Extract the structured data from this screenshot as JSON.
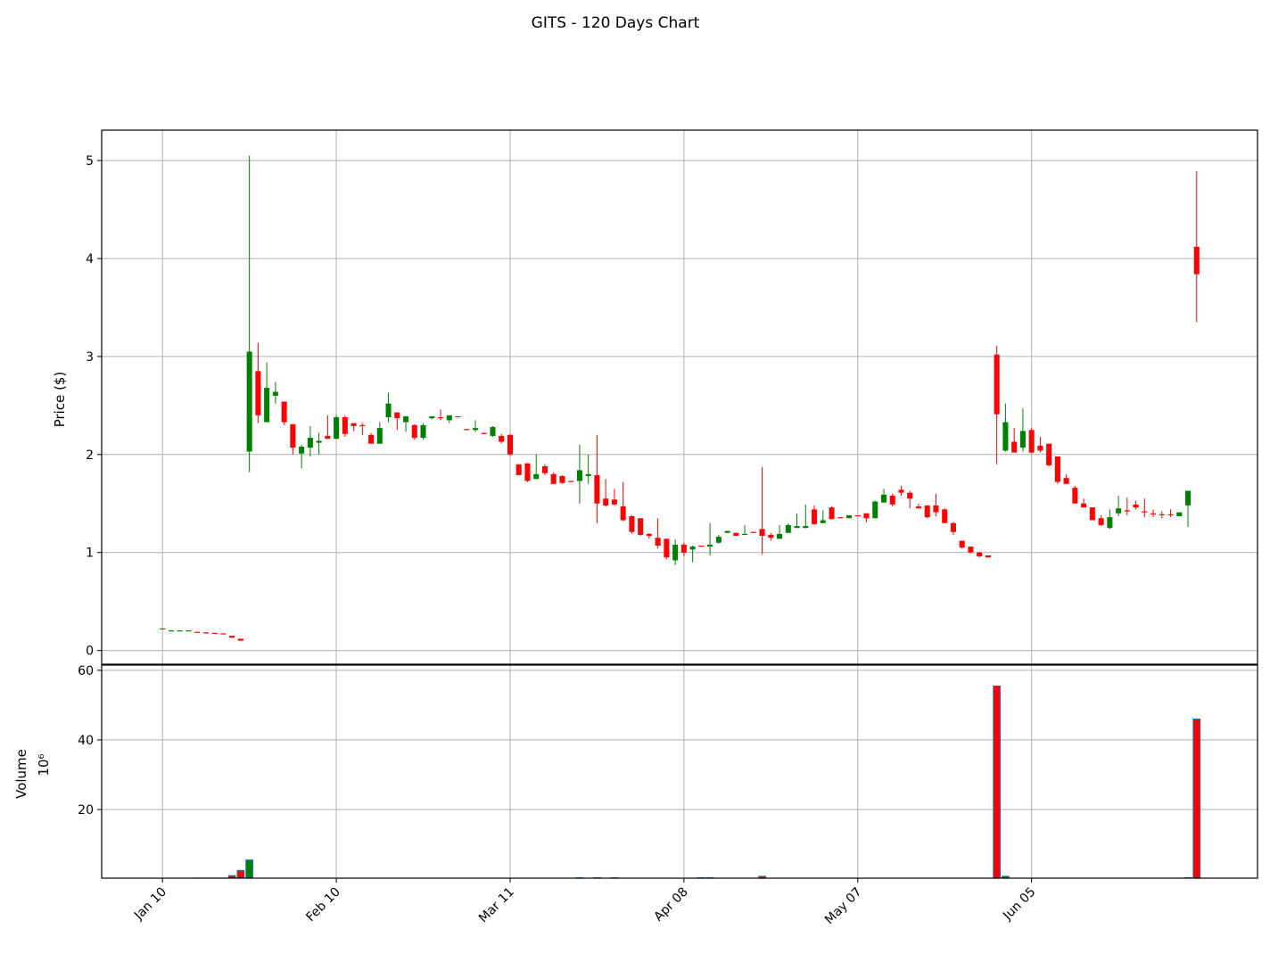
{
  "chart_data": {
    "type": "candlestick",
    "title": "GITS - 120 Days Chart",
    "ylabel": "Price ($)",
    "volume_ylabel": "Volume",
    "volume_unit": "10⁶",
    "up_color": "#008000",
    "down_color": "#ff0000",
    "volume_edge_color": "#1f77b4",
    "grid": true,
    "xlim": [
      -7,
      126
    ],
    "ylim": [
      -0.14,
      5.31
    ],
    "yticks": [
      0,
      1,
      2,
      3,
      4,
      5
    ],
    "volume_ylim": [
      0.26,
      61.5
    ],
    "volume_yticks": [
      20,
      40,
      60
    ],
    "categories": [
      "Jan 10",
      null,
      null,
      null,
      null,
      null,
      null,
      null,
      null,
      null,
      null,
      null,
      null,
      null,
      null,
      null,
      null,
      null,
      null,
      null,
      "Feb 10",
      null,
      null,
      null,
      null,
      null,
      null,
      null,
      null,
      null,
      null,
      null,
      null,
      null,
      null,
      null,
      null,
      null,
      null,
      null,
      "Mar 11",
      null,
      null,
      null,
      null,
      null,
      null,
      null,
      null,
      null,
      null,
      null,
      null,
      null,
      null,
      null,
      null,
      null,
      null,
      null,
      "Apr 08",
      null,
      null,
      null,
      null,
      null,
      null,
      null,
      null,
      null,
      null,
      null,
      null,
      null,
      null,
      null,
      null,
      null,
      null,
      null,
      "May 07",
      null,
      null,
      null,
      null,
      null,
      null,
      null,
      null,
      null,
      null,
      null,
      null,
      null,
      null,
      null,
      null,
      null,
      null,
      null,
      "Jun 05",
      null,
      null,
      null,
      null,
      null,
      null,
      null,
      null,
      null,
      null,
      null,
      null,
      null,
      null,
      null,
      null,
      null,
      null,
      null
    ],
    "open": [
      0.225,
      0.2,
      0.2,
      0.2,
      0.19,
      0.185,
      0.18,
      0.175,
      0.15,
      0.12,
      2.03,
      2.85,
      2.33,
      2.6,
      2.54,
      2.31,
      2.01,
      2.07,
      2.12,
      2.19,
      2.16,
      2.38,
      2.32,
      2.3,
      2.2,
      2.11,
      2.38,
      2.43,
      2.33,
      2.3,
      2.17,
      2.37,
      2.38,
      2.35,
      2.39,
      2.26,
      2.25,
      2.22,
      2.19,
      2.19,
      2.2,
      1.9,
      1.91,
      1.75,
      1.88,
      1.8,
      1.78,
      1.73,
      1.73,
      1.78,
      1.79,
      1.55,
      1.54,
      1.47,
      1.37,
      1.35,
      1.19,
      1.15,
      1.14,
      0.92,
      1.08,
      1.03,
      1.07,
      1.06,
      1.1,
      1.2,
      1.2,
      1.18,
      1.21,
      1.24,
      1.18,
      1.14,
      1.2,
      1.25,
      1.25,
      1.44,
      1.3,
      1.46,
      1.36,
      1.35,
      1.38,
      1.4,
      1.35,
      1.51,
      1.58,
      1.64,
      1.61,
      1.47,
      1.48,
      1.48,
      1.44,
      1.3,
      1.12,
      1.06,
      1.0,
      0.97,
      3.02,
      2.04,
      2.13,
      2.07,
      2.25,
      2.09,
      2.11,
      1.98,
      1.76,
      1.66,
      1.5,
      1.46,
      1.35,
      1.25,
      1.4,
      1.43,
      1.49,
      1.42,
      1.4,
      1.39,
      1.39,
      1.37,
      1.48,
      4.12
    ],
    "high": [
      0.225,
      0.205,
      0.205,
      0.205,
      0.19,
      0.185,
      0.18,
      0.175,
      0.15,
      0.12,
      5.05,
      3.14,
      2.94,
      2.74,
      2.54,
      2.31,
      2.1,
      2.29,
      2.22,
      2.4,
      2.4,
      2.4,
      2.32,
      2.32,
      2.22,
      2.33,
      2.63,
      2.43,
      2.39,
      2.31,
      2.32,
      2.39,
      2.46,
      2.4,
      2.39,
      2.26,
      2.35,
      2.22,
      2.29,
      2.21,
      2.21,
      1.9,
      1.91,
      2.0,
      1.9,
      1.82,
      1.79,
      1.73,
      2.1,
      2.0,
      2.2,
      1.75,
      1.65,
      1.72,
      1.38,
      1.35,
      1.2,
      1.35,
      1.14,
      1.13,
      1.1,
      1.07,
      1.07,
      1.3,
      1.18,
      1.22,
      1.2,
      1.28,
      1.21,
      1.87,
      1.2,
      1.28,
      1.3,
      1.4,
      1.49,
      1.48,
      1.43,
      1.47,
      1.36,
      1.38,
      1.38,
      1.4,
      1.53,
      1.65,
      1.6,
      1.68,
      1.63,
      1.5,
      1.48,
      1.6,
      1.45,
      1.31,
      1.12,
      1.06,
      1.01,
      0.97,
      3.11,
      2.52,
      2.27,
      2.47,
      2.27,
      2.18,
      2.11,
      1.98,
      1.8,
      1.68,
      1.55,
      1.46,
      1.38,
      1.44,
      1.58,
      1.56,
      1.53,
      1.55,
      1.44,
      1.42,
      1.44,
      1.41,
      1.63,
      4.89
    ],
    "low": [
      0.215,
      0.2,
      0.2,
      0.2,
      0.185,
      0.18,
      0.175,
      0.17,
      0.13,
      0.1,
      1.82,
      2.32,
      2.33,
      2.52,
      2.3,
      2.0,
      1.86,
      1.98,
      2.0,
      2.16,
      2.16,
      2.18,
      2.24,
      2.2,
      2.11,
      2.11,
      2.33,
      2.25,
      2.23,
      2.15,
      2.15,
      2.36,
      2.35,
      2.32,
      2.38,
      2.25,
      2.23,
      2.21,
      2.18,
      2.11,
      1.99,
      1.79,
      1.72,
      1.75,
      1.79,
      1.7,
      1.7,
      1.72,
      1.5,
      1.7,
      1.3,
      1.47,
      1.48,
      1.32,
      1.19,
      1.17,
      1.14,
      1.04,
      0.93,
      0.87,
      0.96,
      0.9,
      1.06,
      0.97,
      1.09,
      1.2,
      1.17,
      1.18,
      1.2,
      0.98,
      1.12,
      1.14,
      1.2,
      1.25,
      1.25,
      1.28,
      1.3,
      1.34,
      1.35,
      1.35,
      1.37,
      1.31,
      1.35,
      1.51,
      1.47,
      1.58,
      1.45,
      1.45,
      1.35,
      1.37,
      1.3,
      1.18,
      1.04,
      0.99,
      0.95,
      0.95,
      1.9,
      2.03,
      2.02,
      2.03,
      2.01,
      2.02,
      1.88,
      1.7,
      1.7,
      1.5,
      1.46,
      1.33,
      1.27,
      1.24,
      1.37,
      1.38,
      1.44,
      1.36,
      1.36,
      1.35,
      1.36,
      1.37,
      1.26,
      3.35
    ],
    "close": [
      0.215,
      0.205,
      0.205,
      0.205,
      0.185,
      0.18,
      0.175,
      0.17,
      0.13,
      0.1,
      3.05,
      2.4,
      2.68,
      2.64,
      2.33,
      2.07,
      2.08,
      2.17,
      2.14,
      2.16,
      2.38,
      2.21,
      2.29,
      2.29,
      2.11,
      2.27,
      2.52,
      2.37,
      2.39,
      2.17,
      2.3,
      2.39,
      2.37,
      2.4,
      2.38,
      2.25,
      2.27,
      2.21,
      2.28,
      2.13,
      2.0,
      1.79,
      1.73,
      1.8,
      1.81,
      1.7,
      1.71,
      1.72,
      1.84,
      1.8,
      1.5,
      1.48,
      1.49,
      1.33,
      1.21,
      1.18,
      1.17,
      1.07,
      0.95,
      1.08,
      1.0,
      1.06,
      1.06,
      1.08,
      1.16,
      1.22,
      1.17,
      1.19,
      1.2,
      1.17,
      1.15,
      1.19,
      1.28,
      1.27,
      1.27,
      1.29,
      1.33,
      1.34,
      1.35,
      1.38,
      1.37,
      1.35,
      1.52,
      1.59,
      1.49,
      1.61,
      1.55,
      1.45,
      1.36,
      1.41,
      1.3,
      1.21,
      1.05,
      1.0,
      0.96,
      0.95,
      2.41,
      2.33,
      2.02,
      2.24,
      2.02,
      2.04,
      1.89,
      1.72,
      1.7,
      1.5,
      1.46,
      1.33,
      1.28,
      1.36,
      1.45,
      1.42,
      1.46,
      1.41,
      1.39,
      1.38,
      1.38,
      1.41,
      1.63,
      3.84
    ],
    "volume": [
      0.2,
      0.2,
      0.2,
      0.2,
      0.3,
      0.3,
      0.3,
      0.3,
      1.0,
      2.5,
      5.5,
      0.2,
      0.2,
      0.2,
      0.2,
      0.2,
      0.2,
      0.2,
      0.2,
      0.2,
      0.2,
      0.2,
      0.2,
      0.2,
      0.2,
      0.2,
      0.2,
      0.2,
      0.2,
      0.2,
      0.2,
      0.2,
      0.2,
      0.2,
      0.2,
      0.2,
      0.2,
      0.2,
      0.2,
      0.2,
      0.2,
      0.2,
      0.2,
      0.2,
      0.2,
      0.2,
      0.2,
      0.2,
      0.4,
      0.2,
      0.4,
      0.2,
      0.4,
      0.2,
      0.2,
      0.2,
      0.2,
      0.2,
      0.2,
      0.2,
      0.2,
      0.2,
      0.4,
      0.4,
      0.2,
      0.2,
      0.2,
      0.2,
      0.2,
      0.8,
      0.2,
      0.2,
      0.2,
      0.2,
      0.2,
      0.2,
      0.2,
      0.2,
      0.2,
      0.2,
      0.2,
      0.2,
      0.2,
      0.2,
      0.2,
      0.2,
      0.2,
      0.2,
      0.2,
      0.2,
      0.2,
      0.2,
      0.2,
      0.2,
      0.2,
      0.2,
      55.5,
      0.8,
      0.2,
      0.2,
      0.2,
      0.2,
      0.2,
      0.2,
      0.2,
      0.2,
      0.2,
      0.2,
      0.2,
      0.2,
      0.2,
      0.2,
      0.2,
      0.2,
      0.2,
      0.2,
      0.2,
      0.2,
      0.4,
      46.0
    ]
  }
}
